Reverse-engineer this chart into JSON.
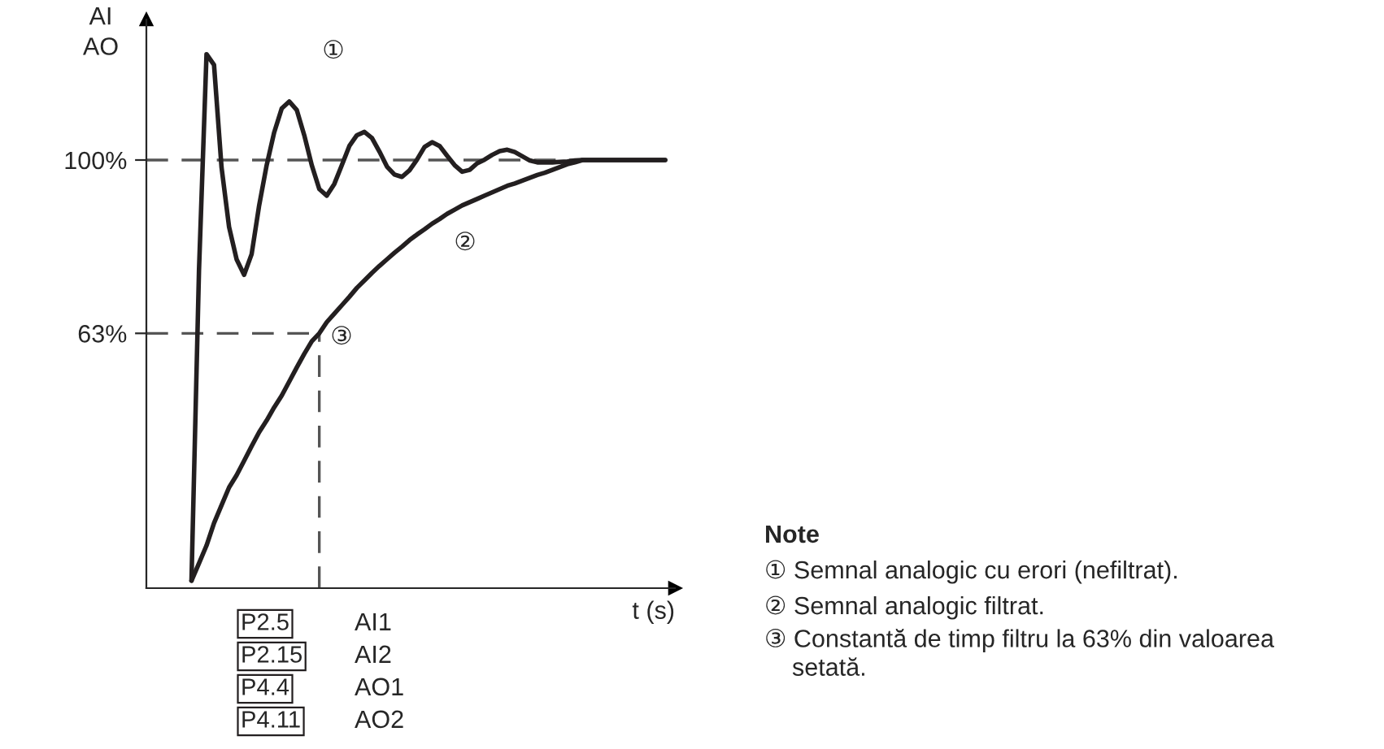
{
  "chart_data": {
    "type": "line",
    "ylabel": "AI\nAO",
    "xlabel": "t (s)",
    "categories": [
      null,
      null,
      null,
      null,
      null,
      null,
      null,
      null,
      null,
      null,
      null,
      null,
      null,
      null,
      null,
      null,
      null,
      null,
      null,
      null,
      null,
      null,
      null,
      null,
      null,
      null,
      null,
      null,
      null,
      null,
      null,
      null,
      null,
      null,
      null,
      null,
      null,
      null,
      null,
      null,
      null,
      null,
      null,
      null,
      null,
      null,
      null,
      null,
      null,
      null,
      null,
      null,
      null,
      null,
      null,
      null,
      null,
      null,
      null,
      null,
      null,
      null,
      null,
      null
    ],
    "series": [
      {
        "color": "#231f20",
        "values": [
          10.2,
          76.5,
          122.6,
          120.3,
          98.4,
          85.7,
          78.8,
          75.5,
          79.9,
          90.3,
          98.9,
          105.9,
          111.0,
          112.5,
          110.7,
          105.3,
          98.9,
          93.8,
          92.4,
          94.9,
          98.9,
          103.0,
          105.3,
          106.0,
          104.7,
          101.8,
          98.6,
          96.9,
          96.4,
          97.8,
          100.1,
          102.8,
          103.8,
          103.0,
          100.9,
          98.9,
          97.5,
          97.9,
          99.3,
          100.1,
          101.1,
          101.9,
          102.2,
          101.7,
          100.8,
          99.9,
          99.5,
          99.5,
          99.5,
          99.6,
          99.7,
          99.9,
          100,
          100,
          100,
          100,
          100,
          100,
          100,
          100,
          100,
          100,
          100,
          100
        ]
      },
      {
        "color": "#231f20",
        "values": [
          10.2,
          13.9,
          17.7,
          22.5,
          26.3,
          30.1,
          32.7,
          35.8,
          38.9,
          41.9,
          44.4,
          47.2,
          49.7,
          52.7,
          55.7,
          58.6,
          61.3,
          63.0,
          65.4,
          67.2,
          69.0,
          70.8,
          72.7,
          74.3,
          75.9,
          77.4,
          78.8,
          80.2,
          81.5,
          82.9,
          84.1,
          85.2,
          86.4,
          87.4,
          88.5,
          89.4,
          90.3,
          91.0,
          91.7,
          92.4,
          93.1,
          93.8,
          94.5,
          95.0,
          95.6,
          96.2,
          96.8,
          97.3,
          97.9,
          98.5,
          99.1,
          99.5,
          100,
          100,
          100,
          100,
          100,
          100,
          100,
          100,
          100,
          100,
          100,
          100
        ]
      }
    ],
    "ylim": [
      8.6,
      130
    ],
    "yticks": [
      {
        "value": 63,
        "label": "63%"
      },
      {
        "value": 100,
        "label": "100%"
      }
    ],
    "ref_lines": [
      {
        "axis": "y",
        "value": 100,
        "color": "#555555",
        "line_style": "dashed"
      },
      {
        "axis": "y",
        "value": 63,
        "color": "#555555",
        "line_style": "dashed"
      }
    ],
    "grid": false,
    "marker": "none",
    "line_style": "solid",
    "annotations": [
      "①",
      "②",
      "③",
      "P2.5",
      "AI1",
      "P2.15",
      "AI2",
      "P4.4",
      "AO1",
      "P4.11",
      "AO2",
      "Note",
      "① Semnal analogic cu erori (nefiltrat).",
      "② Semnal analogic filtrat.",
      "③ Constantă de timp filtru la 63% din valoarea setată."
    ]
  }
}
